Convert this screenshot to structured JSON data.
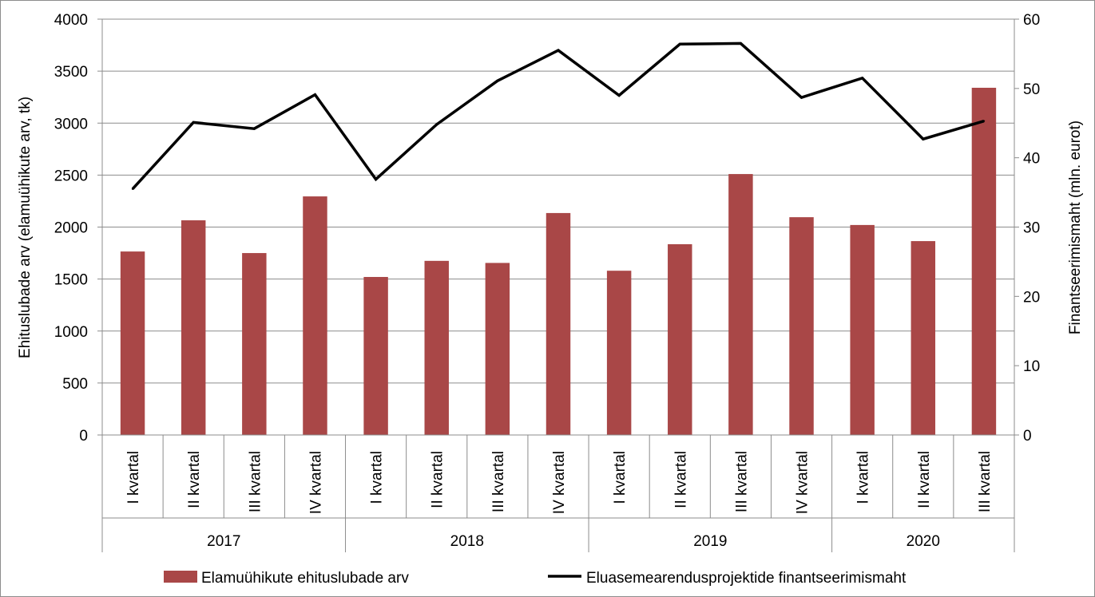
{
  "chart_data": {
    "type": "bar",
    "groups": [
      {
        "label": "2017",
        "categories": [
          "I kvartal",
          "II kvartal",
          "III kvartal",
          "IV kvartal"
        ]
      },
      {
        "label": "2018",
        "categories": [
          "I kvartal",
          "II kvartal",
          "III kvartal",
          "IV kvartal"
        ]
      },
      {
        "label": "2019",
        "categories": [
          "I kvartal",
          "II kvartal",
          "III kvartal",
          "IV kvartal"
        ]
      },
      {
        "label": "2020",
        "categories": [
          "I kvartal",
          "II kvartal",
          "III kvartal"
        ]
      }
    ],
    "series": [
      {
        "name": "Elamuühikute ehituslubade arv",
        "type": "bar",
        "axis": "left",
        "color": "#a94747",
        "values": [
          1765,
          2065,
          1750,
          2295,
          1520,
          1675,
          1655,
          2135,
          1580,
          1835,
          2510,
          2095,
          2020,
          1865,
          3340
        ]
      },
      {
        "name": "Eluasemearendusprojektide finantseerimismaht",
        "type": "line",
        "axis": "right",
        "color": "#000000",
        "values": [
          35.5,
          45.1,
          44.2,
          49.1,
          36.9,
          44.8,
          51.1,
          55.5,
          49.0,
          56.4,
          56.5,
          48.7,
          51.5,
          42.7,
          45.3
        ]
      }
    ],
    "y_left": {
      "label": "Ehituslubade arv (elamuühikute arv, tk)",
      "min": 0,
      "max": 4000,
      "ticks": [
        0,
        500,
        1000,
        1500,
        2000,
        2500,
        3000,
        3500,
        4000
      ]
    },
    "y_right": {
      "label": "Finantseerimismaht (mln. eurot)",
      "min": 0,
      "max": 60,
      "ticks": [
        0,
        10,
        20,
        30,
        40,
        50,
        60
      ]
    },
    "grid": true,
    "legend_position": "bottom"
  }
}
